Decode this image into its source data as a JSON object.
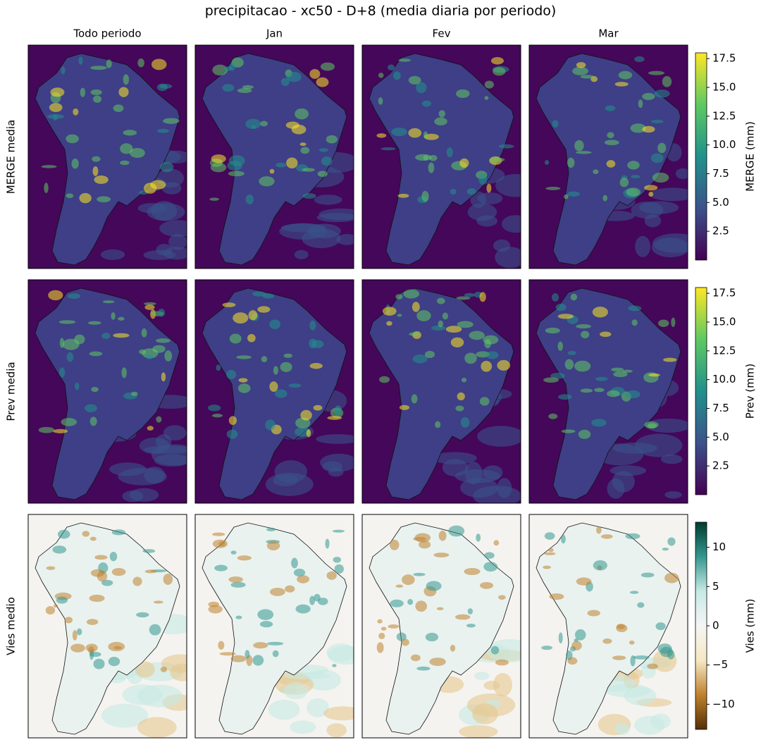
{
  "title": "precipitacao - xc50 - D+8 (media diaria por periodo)",
  "columns": [
    "Todo periodo",
    "Jan",
    "Fev",
    "Mar"
  ],
  "rows": [
    {
      "label": "MERGE media",
      "colorbar": {
        "label": "MERGE (mm)",
        "range": [
          0,
          18
        ],
        "colors": [
          "#440154",
          "#3b528b",
          "#21918c",
          "#5ec962",
          "#fde725"
        ],
        "ticks": [
          2.5,
          {
            "value": 5,
            "label": "5.0"
          },
          7.5,
          {
            "value": 10,
            "label": "10.0"
          },
          12.5,
          {
            "value": 15,
            "label": "15.0"
          },
          17.5
        ]
      }
    },
    {
      "label": "Prev media",
      "colorbar": {
        "label": "Prev (mm)",
        "range": [
          0,
          18
        ],
        "colors": [
          "#440154",
          "#3b528b",
          "#21918c",
          "#5ec962",
          "#fde725"
        ],
        "ticks": [
          2.5,
          {
            "value": 5,
            "label": "5.0"
          },
          7.5,
          {
            "value": 10,
            "label": "10.0"
          },
          12.5,
          {
            "value": 15,
            "label": "15.0"
          },
          17.5
        ]
      }
    },
    {
      "label": "Vies medio",
      "colorbar": {
        "label": "Vies (mm)",
        "range": [
          -13.2,
          13.2
        ],
        "colors": [
          "#543005",
          "#bf812d",
          "#f6e8c3",
          "#f5f5f5",
          "#c7eae5",
          "#35978f",
          "#003c30"
        ],
        "ticks": [
          {
            "value": -10,
            "label": "−10"
          },
          {
            "value": -5,
            "label": "−5"
          },
          0,
          5,
          10
        ]
      }
    }
  ]
}
